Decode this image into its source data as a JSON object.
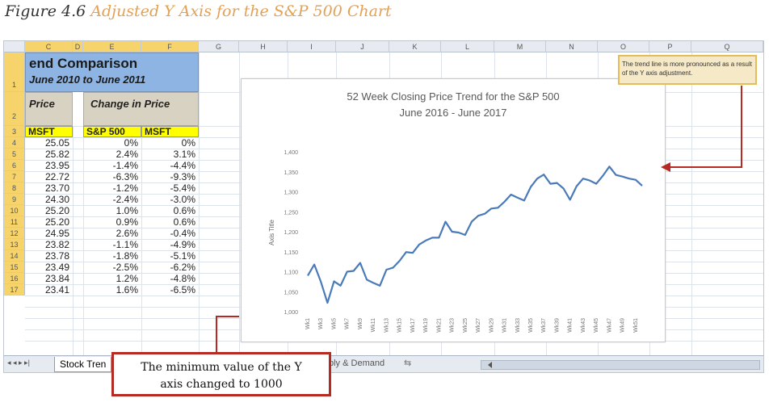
{
  "caption": {
    "figure": "Figure 4.6",
    "title": "Adjusted Y Axis for the S&P 500 Chart"
  },
  "sheet": {
    "columns": [
      "C",
      "D",
      "E",
      "F",
      "G",
      "H",
      "I",
      "J",
      "K",
      "L",
      "M",
      "N",
      "O",
      "P",
      "Q"
    ],
    "rows": [
      "1",
      "2",
      "3",
      "4",
      "5",
      "6",
      "7",
      "8",
      "9",
      "10",
      "11",
      "12",
      "13",
      "14",
      "15",
      "16",
      "17"
    ],
    "title_line1": "end Comparison",
    "title_line2": "June 2010 to June 2011",
    "price_header": "Price",
    "change_header": "Change in Price",
    "col_msft": "MSFT",
    "col_sp500": "S&P 500",
    "col_msft2": "MSFT",
    "price_values": [
      "25.05",
      "25.82",
      "23.95",
      "22.72",
      "23.70",
      "24.30",
      "25.20",
      "25.20",
      "24.95",
      "23.82",
      "23.78",
      "23.49",
      "23.84",
      "23.41"
    ],
    "sp_change": [
      "0%",
      "2.4%",
      "-1.4%",
      "-6.3%",
      "-1.2%",
      "-2.4%",
      "1.0%",
      "0.9%",
      "2.6%",
      "-1.1%",
      "-1.8%",
      "-2.5%",
      "1.2%",
      "1.6%"
    ],
    "msft_change": [
      "0%",
      "3.1%",
      "-4.4%",
      "-9.3%",
      "-5.4%",
      "-3.0%",
      "0.6%",
      "0.6%",
      "-0.4%",
      "-4.9%",
      "-5.1%",
      "-6.2%",
      "-4.8%",
      "-6.5%"
    ]
  },
  "tabs": {
    "nav": "◂ ◂ ▸ ▸|",
    "tab1": "Stock Tren",
    "tab2": "ply & Demand",
    "new_icon": "⇆"
  },
  "chart_data": {
    "type": "line",
    "title": "52 Week Closing Price Trend for the S&P 500",
    "subtitle": "June 2016 - June 2017",
    "ylabel": "Axis Title",
    "xlabel": "",
    "ylim": [
      1000,
      1400
    ],
    "yticks": [
      "1,000",
      "1,050",
      "1,100",
      "1,150",
      "1,200",
      "1,250",
      "1,300",
      "1,350",
      "1,400"
    ],
    "xticks": [
      "Wk1",
      "Wk3",
      "Wk5",
      "Wk7",
      "Wk9",
      "Wk11",
      "Wk13",
      "Wk15",
      "Wk17",
      "Wk19",
      "Wk21",
      "Wk23",
      "Wk25",
      "Wk27",
      "Wk29",
      "Wk31",
      "Wk33",
      "Wk35",
      "Wk37",
      "Wk39",
      "Wk41",
      "Wk43",
      "Wk45",
      "Wk47",
      "Wk49",
      "Wk51"
    ],
    "series": [
      {
        "color": "#4a7ab8",
        "values": [
          1090,
          1118,
          1075,
          1022,
          1076,
          1065,
          1100,
          1102,
          1122,
          1080,
          1072,
          1065,
          1105,
          1110,
          1127,
          1149,
          1147,
          1168,
          1178,
          1185,
          1185,
          1225,
          1200,
          1198,
          1192,
          1225,
          1240,
          1245,
          1258,
          1260,
          1275,
          1293,
          1285,
          1278,
          1312,
          1333,
          1343,
          1320,
          1322,
          1308,
          1280,
          1314,
          1333,
          1328,
          1320,
          1340,
          1363,
          1342,
          1338,
          1333,
          1330,
          1315
        ]
      }
    ]
  },
  "callouts": {
    "top": "The trend line is more pronounced as a result of the Y axis adjustment.",
    "bottom_line1": "The minimum value of the Y",
    "bottom_line2": "axis changed to 1000"
  },
  "colors": {
    "accent": "#e3a155",
    "arrow": "#b52a22",
    "header_fill": "#8db4e2",
    "yellow": "#ffff00"
  }
}
